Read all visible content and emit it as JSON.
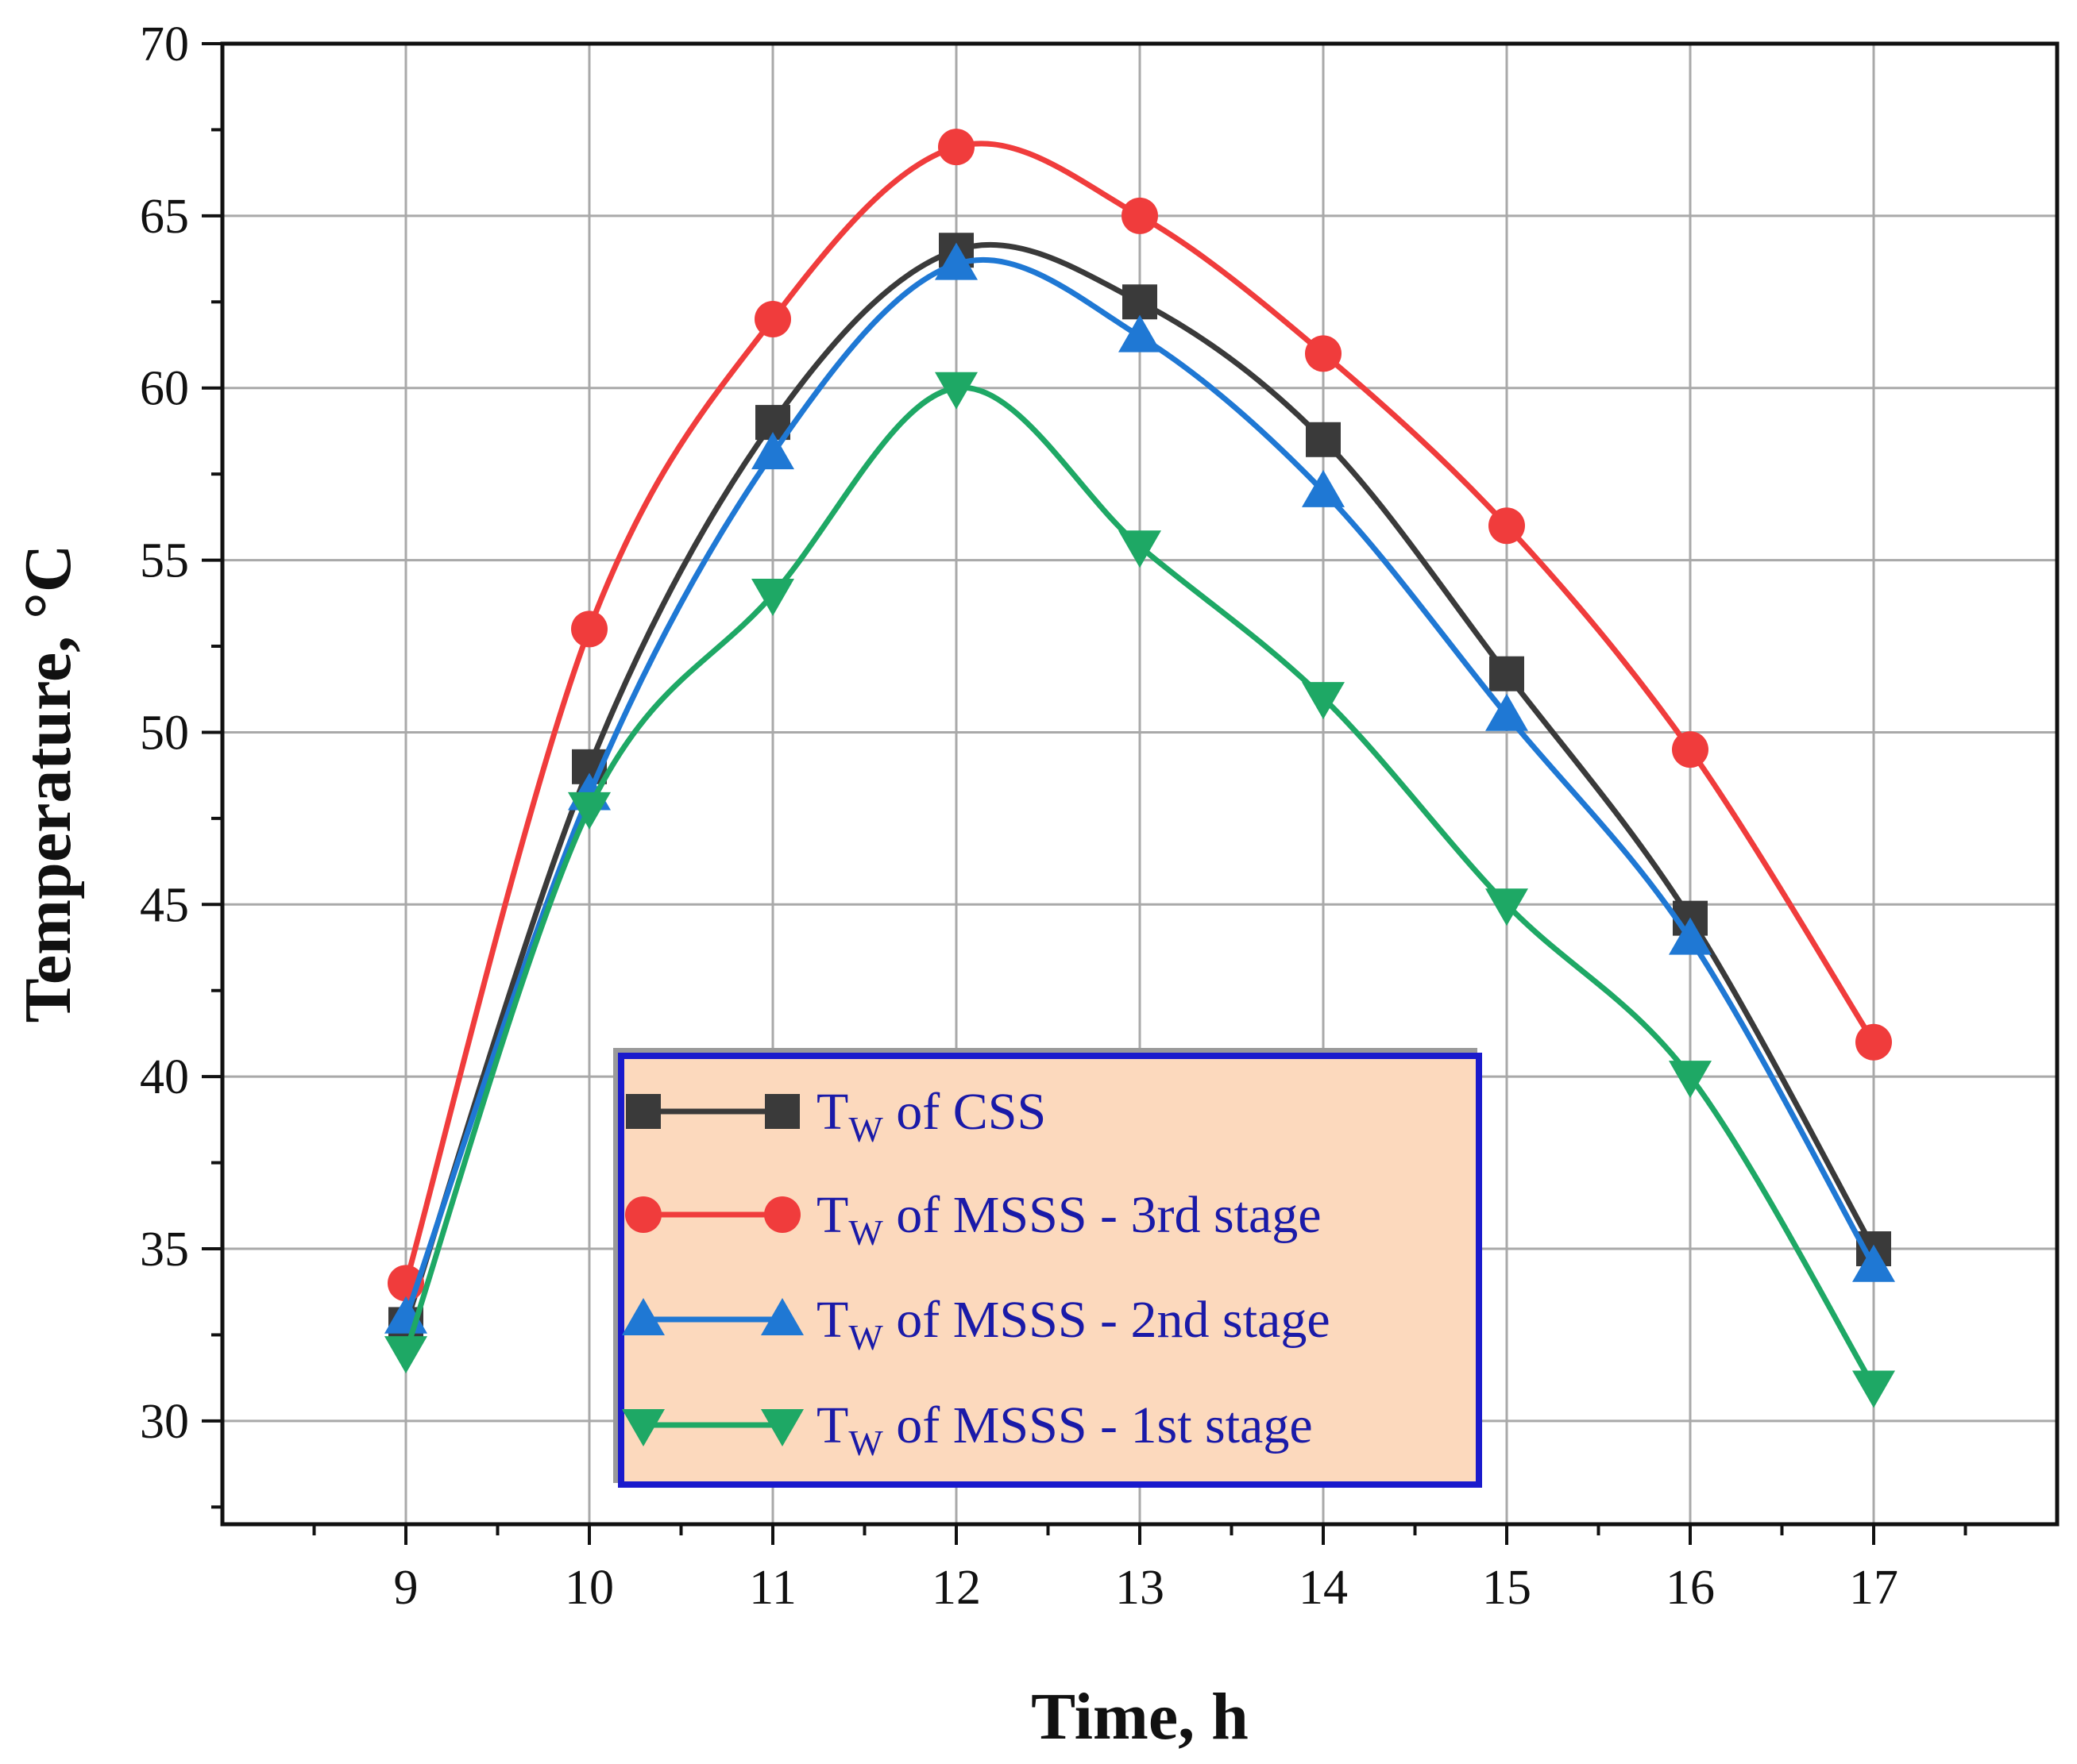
{
  "chart_data": {
    "type": "line",
    "title": "",
    "xlabel": "Time, h",
    "ylabel": "Temperature, °C",
    "x": [
      9,
      10,
      11,
      12,
      13,
      14,
      15,
      16,
      17
    ],
    "xlim": [
      8,
      18
    ],
    "ylim": [
      27,
      70
    ],
    "xticks": [
      9,
      10,
      11,
      12,
      13,
      14,
      15,
      16,
      17
    ],
    "yticks": [
      30,
      35,
      40,
      45,
      50,
      55,
      60,
      65,
      70
    ],
    "grid": true,
    "legend_position": "bottom-center",
    "series": [
      {
        "name": "CSS",
        "legend": {
          "prefix": "T",
          "sub": "W",
          "suffix": " of CSS"
        },
        "marker": "square",
        "color": "#3a3a3a",
        "values": [
          32.8,
          49,
          59,
          64,
          62.5,
          58.5,
          51.7,
          44.6,
          35
        ]
      },
      {
        "name": "MSSS - 3rd stage",
        "legend": {
          "prefix": "T",
          "sub": "W",
          "suffix": " of MSSS - 3rd stage"
        },
        "marker": "circle",
        "color": "#f03c3c",
        "values": [
          34,
          53,
          62,
          67,
          65,
          61,
          56,
          49.5,
          41
        ]
      },
      {
        "name": "MSSS - 2nd stage",
        "legend": {
          "prefix": "T",
          "sub": "W",
          "suffix": " of MSSS - 2nd stage"
        },
        "marker": "triangle-up",
        "color": "#1f78d4",
        "values": [
          33,
          48.2,
          58.1,
          63.6,
          61.5,
          57,
          50.5,
          44,
          34.5
        ]
      },
      {
        "name": "MSSS - 1st stage",
        "legend": {
          "prefix": "T",
          "sub": "W",
          "suffix": " of MSSS - 1st stage"
        },
        "marker": "triangle-down",
        "color": "#1ea865",
        "values": [
          32,
          47.8,
          54,
          60,
          55.4,
          51,
          45,
          40,
          31
        ]
      }
    ]
  }
}
